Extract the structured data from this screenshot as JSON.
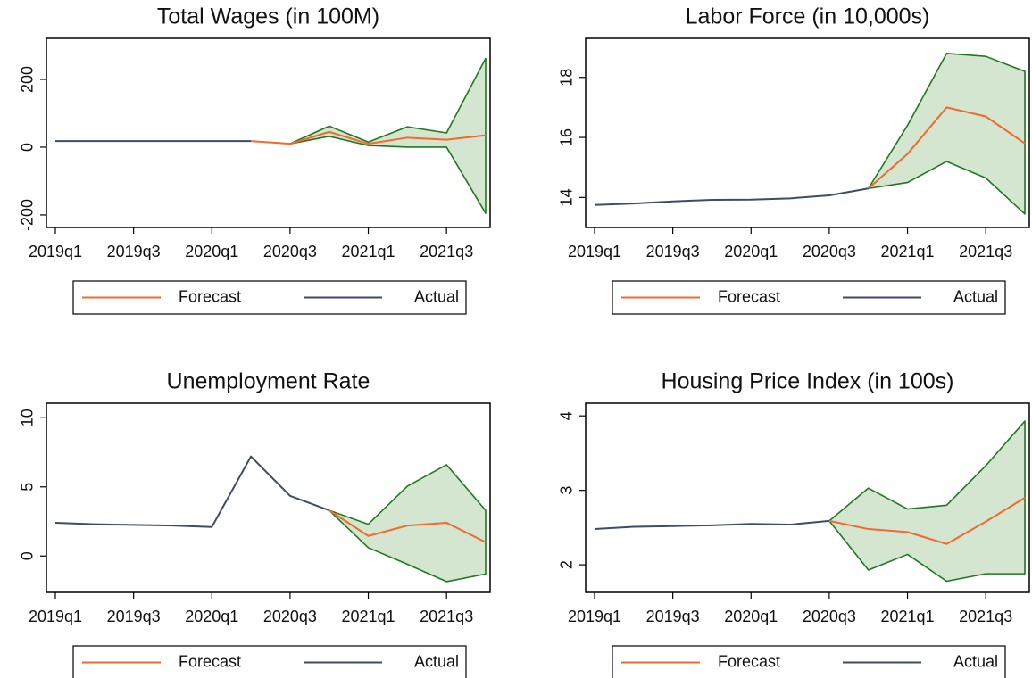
{
  "chart_data": [
    {
      "type": "line",
      "title": "Total Wages (in 100M)",
      "categories": [
        "2019q1",
        null,
        "2019q3",
        null,
        "2020q1",
        null,
        "2020q3",
        null,
        "2021q1",
        null,
        "2021q3",
        null
      ],
      "series": [
        {
          "name": "Forecast",
          "color": "#f26a2e",
          "values": [
            null,
            null,
            null,
            null,
            null,
            18,
            10,
            45,
            10,
            28,
            22,
            35
          ]
        },
        {
          "name": "Actual",
          "color": "#3e4d66",
          "values": [
            18,
            18,
            18,
            18,
            18,
            18,
            null,
            null,
            null,
            null,
            null,
            null
          ]
        }
      ],
      "band": {
        "color": "#1f7a1f",
        "fill": "#cfe2cb",
        "upper": [
          null,
          null,
          null,
          null,
          null,
          null,
          10,
          62,
          15,
          60,
          42,
          262
        ],
        "lower": [
          null,
          null,
          null,
          null,
          null,
          null,
          10,
          32,
          5,
          0,
          0,
          -195
        ]
      },
      "ylim": [
        -237,
        321
      ],
      "yticks": [
        -200,
        0,
        200
      ]
    },
    {
      "type": "line",
      "title": "Labor Force (in 10,000s)",
      "categories": [
        "2019q1",
        null,
        "2019q3",
        null,
        "2020q1",
        null,
        "2020q3",
        null,
        "2021q1",
        null,
        "2021q3",
        null
      ],
      "series": [
        {
          "name": "Forecast",
          "color": "#f26a2e",
          "values": [
            null,
            null,
            null,
            null,
            null,
            null,
            null,
            14.3,
            15.45,
            17.0,
            16.7,
            15.8
          ]
        },
        {
          "name": "Actual",
          "color": "#3e4d66",
          "values": [
            13.75,
            13.8,
            13.87,
            13.92,
            13.93,
            13.97,
            14.07,
            14.3,
            null,
            null,
            null,
            null
          ]
        }
      ],
      "band": {
        "color": "#1f7a1f",
        "fill": "#cfe2cb",
        "upper": [
          null,
          null,
          null,
          null,
          null,
          null,
          null,
          14.3,
          16.4,
          18.8,
          18.7,
          18.2
        ],
        "lower": [
          null,
          null,
          null,
          null,
          null,
          null,
          null,
          14.3,
          14.5,
          15.2,
          14.65,
          13.45
        ]
      },
      "ylim": [
        13.0,
        19.3
      ],
      "yticks": [
        14,
        16,
        18
      ]
    },
    {
      "type": "line",
      "title": "Unemployment Rate",
      "categories": [
        "2019q1",
        null,
        "2019q3",
        null,
        "2020q1",
        null,
        "2020q3",
        null,
        "2021q1",
        null,
        "2021q3",
        null
      ],
      "series": [
        {
          "name": "Forecast",
          "color": "#f26a2e",
          "values": [
            null,
            null,
            null,
            null,
            null,
            null,
            null,
            3.3,
            1.45,
            2.2,
            2.4,
            1.0
          ]
        },
        {
          "name": "Actual",
          "color": "#3e4d66",
          "values": [
            2.4,
            2.3,
            2.25,
            2.2,
            2.1,
            7.2,
            4.35,
            3.3,
            null,
            null,
            null,
            null
          ]
        }
      ],
      "band": {
        "color": "#1f7a1f",
        "fill": "#cfe2cb",
        "upper": [
          null,
          null,
          null,
          null,
          null,
          null,
          null,
          3.3,
          2.3,
          5.05,
          6.6,
          3.3
        ],
        "lower": [
          null,
          null,
          null,
          null,
          null,
          null,
          null,
          3.3,
          0.6,
          -0.6,
          -1.85,
          -1.3
        ]
      },
      "ylim": [
        -2.63,
        11.05
      ],
      "yticks": [
        0,
        5,
        10
      ]
    },
    {
      "type": "line",
      "title": "Housing Price Index (in 100s)",
      "categories": [
        "2019q1",
        null,
        "2019q3",
        null,
        "2020q1",
        null,
        "2020q3",
        null,
        "2021q1",
        null,
        "2021q3",
        null
      ],
      "series": [
        {
          "name": "Forecast",
          "color": "#f26a2e",
          "values": [
            null,
            null,
            null,
            null,
            null,
            null,
            2.59,
            2.48,
            2.44,
            2.28,
            2.58,
            2.9
          ]
        },
        {
          "name": "Actual",
          "color": "#3e4d66",
          "values": [
            2.48,
            2.51,
            2.52,
            2.53,
            2.55,
            2.54,
            2.59,
            null,
            null,
            null,
            null,
            null
          ]
        }
      ],
      "band": {
        "color": "#1f7a1f",
        "fill": "#cfe2cb",
        "upper": [
          null,
          null,
          null,
          null,
          null,
          null,
          2.59,
          3.03,
          2.75,
          2.8,
          3.33,
          3.93
        ],
        "lower": [
          null,
          null,
          null,
          null,
          null,
          null,
          2.59,
          1.93,
          2.14,
          1.78,
          1.88,
          1.88
        ]
      },
      "ylim": [
        1.63,
        4.17
      ],
      "yticks": [
        2,
        3,
        4
      ]
    }
  ]
}
